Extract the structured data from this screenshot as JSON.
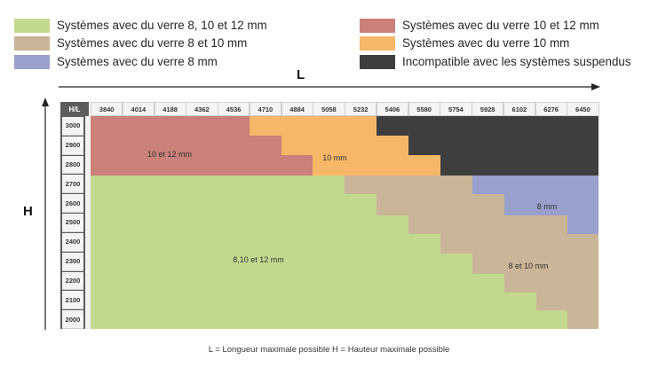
{
  "legend": [
    {
      "label": "Systèmes avec du verre 8, 10 et 12 mm",
      "color": "#c2d98f"
    },
    {
      "label": "Systèmes avec du verre 8 et 10 mm",
      "color": "#c9b597"
    },
    {
      "label": "Systèmes avec du verre 8 mm",
      "color": "#99a0cc"
    },
    {
      "label": "Systèmes avec du verre 10 et 12 mm",
      "color": "#c98179"
    },
    {
      "label": "Systèmes avec du verre 10 mm",
      "color": "#f7b769"
    },
    {
      "label": "Incompatible avec les systèmes suspendus",
      "color": "#3e3e3e"
    }
  ],
  "axes": {
    "length_letter": "L",
    "height_letter": "H"
  },
  "table": {
    "corner_label": "H/L",
    "widths": [
      "3840",
      "4014",
      "4188",
      "4362",
      "4536",
      "4710",
      "4884",
      "5058",
      "5232",
      "5406",
      "5580",
      "5754",
      "5928",
      "6102",
      "6276",
      "6450"
    ],
    "heights": [
      "3000",
      "2900",
      "2800",
      "2700",
      "2600",
      "2500",
      "2400",
      "2300",
      "2200",
      "2100",
      "2000"
    ]
  },
  "regions": [
    {
      "label": "10 et 12 mm",
      "color": "#c98179"
    },
    {
      "label": "10 mm",
      "color": "#f7b769"
    },
    {
      "label": "8 mm",
      "color": "#99a0cc"
    },
    {
      "label": "8 et 10 mm",
      "color": "#c9b597"
    },
    {
      "label": "8,10 et 12 mm",
      "color": "#c2d98f"
    },
    {
      "label": "",
      "color": "#3e3e3e"
    }
  ],
  "footer": {
    "note": "L = Longueur maximale possible    H = Hauteur maximale possible"
  }
}
